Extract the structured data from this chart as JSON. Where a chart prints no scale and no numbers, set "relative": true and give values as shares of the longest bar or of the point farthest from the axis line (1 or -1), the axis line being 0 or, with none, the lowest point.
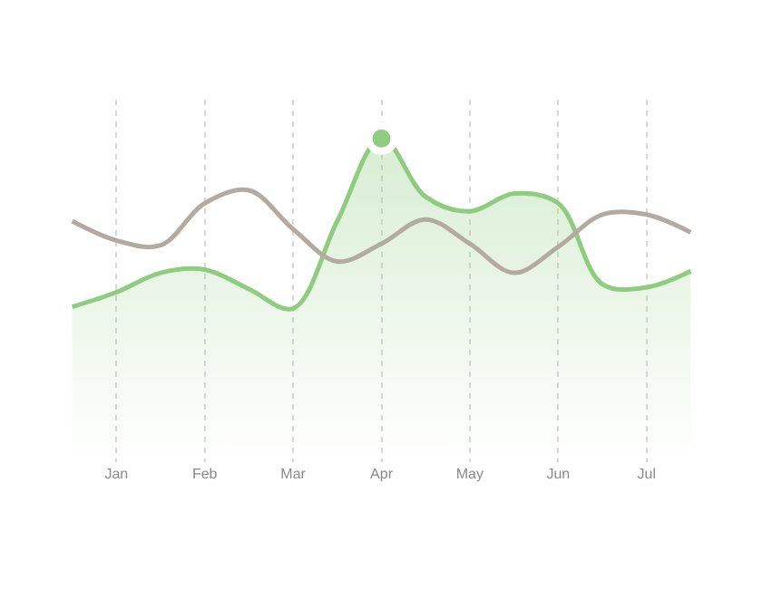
{
  "chart_data": {
    "type": "line",
    "relative": true,
    "grid": "x",
    "categories": [
      null,
      "Jan",
      null,
      "Feb",
      null,
      "Mar",
      null,
      "Apr",
      null,
      "May",
      null,
      "Jun",
      null,
      "Jul",
      null
    ],
    "series": [
      {
        "type": "area",
        "color": "#8fcc7f",
        "values": [
          0.48,
          0.525,
          0.585,
          0.595,
          0.535,
          0.475,
          0.745,
          1.0,
          0.82,
          0.775,
          0.83,
          0.8,
          0.55,
          0.54,
          0.59
        ]
      },
      {
        "color": "#b3aba2",
        "values": [
          0.745,
          0.685,
          0.67,
          0.8,
          0.84,
          0.72,
          0.62,
          0.675,
          0.75,
          0.675,
          0.585,
          0.665,
          0.765,
          0.765,
          0.71
        ]
      },
      {
        "type": "scatter",
        "color": "#8fcc7f",
        "values": [
          null,
          null,
          null,
          null,
          null,
          null,
          null,
          1.0,
          null,
          null,
          null,
          null,
          null,
          null,
          null
        ]
      }
    ]
  }
}
